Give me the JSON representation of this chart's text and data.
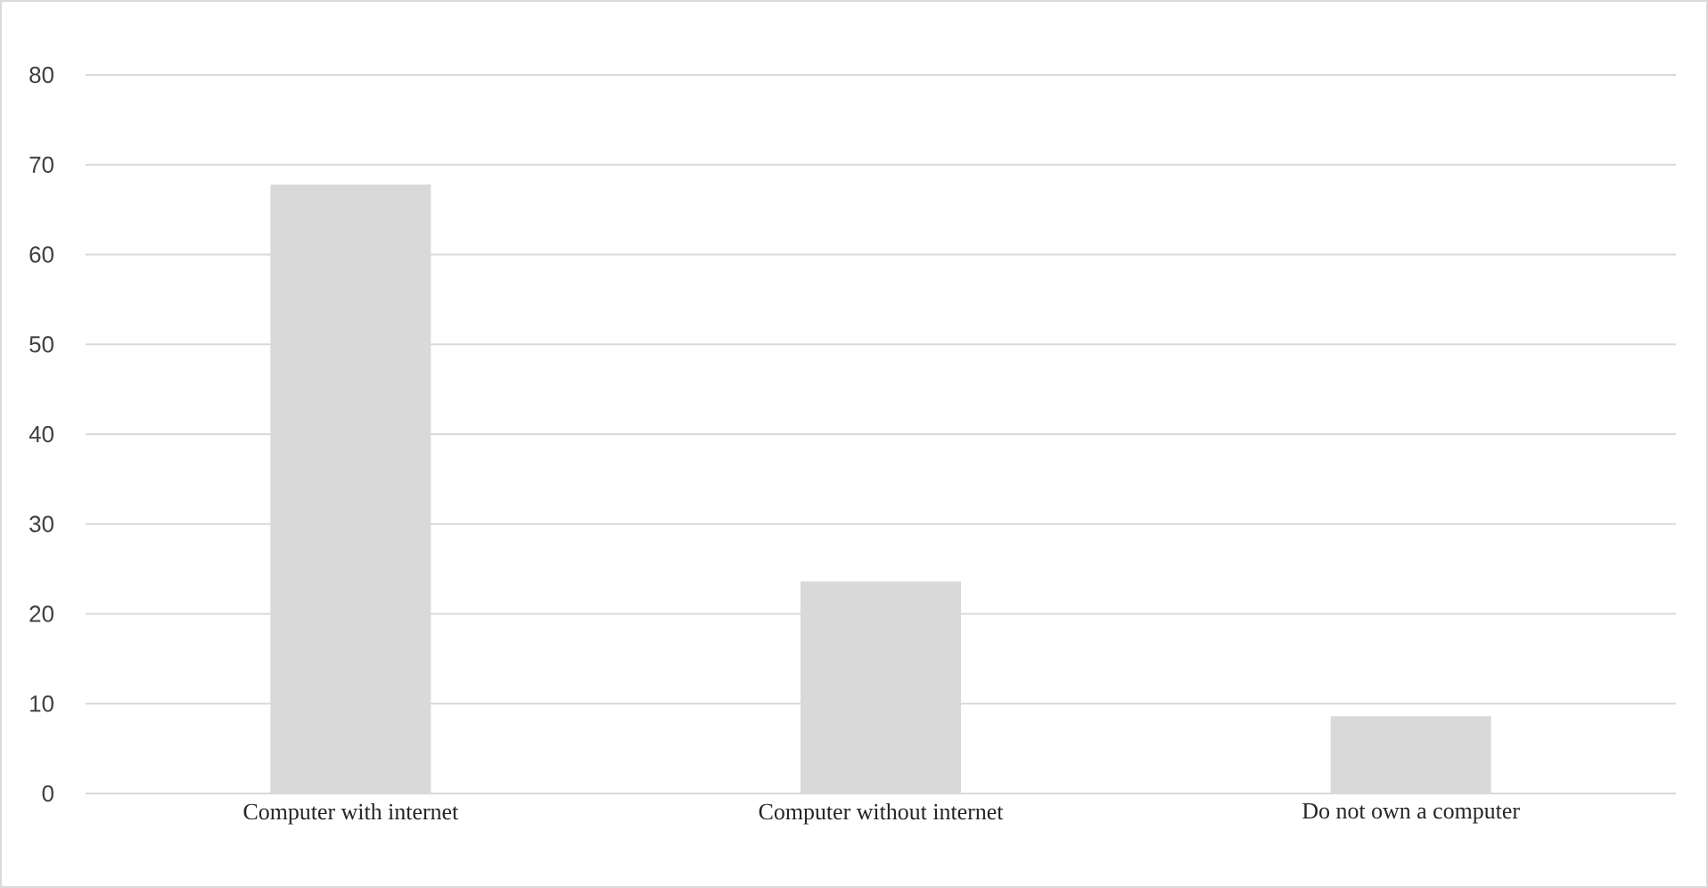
{
  "chart_data": {
    "type": "bar",
    "categories": [
      "Computer with internet",
      "Computer without internet",
      "Do not own a computer"
    ],
    "values": [
      67.8,
      23.6,
      8.6
    ],
    "color": "#d9d9d9",
    "ylim": [
      0,
      80
    ],
    "yticks": [
      0,
      10,
      20,
      30,
      40,
      50,
      60,
      70,
      80
    ],
    "grid": "y"
  }
}
